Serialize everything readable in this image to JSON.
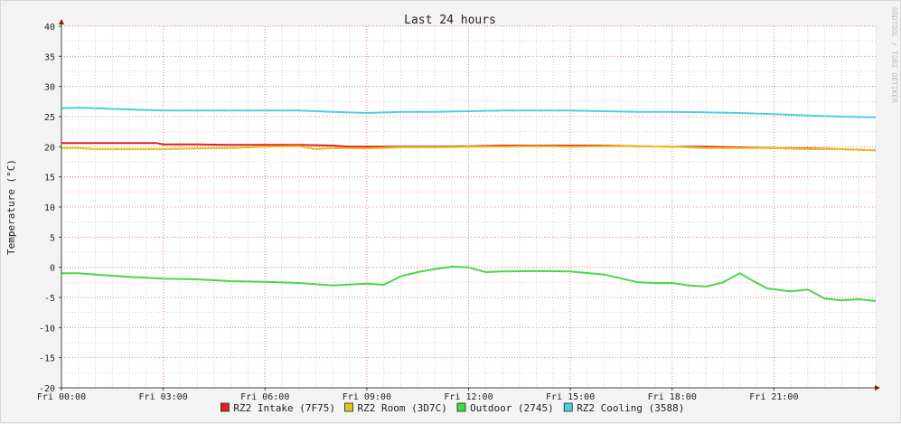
{
  "chart_data": {
    "type": "line",
    "title": "Last 24 hours",
    "ylabel": "Temperature (°C)",
    "watermark": "RRDTOOL / TOBI OETIKER",
    "ylim": [
      -20,
      40
    ],
    "yticks": [
      -20,
      -15,
      -10,
      -5,
      0,
      5,
      10,
      15,
      20,
      25,
      30,
      35,
      40
    ],
    "xlim": [
      0,
      24
    ],
    "xtick_labels": [
      "Fri 00:00",
      "Fri 03:00",
      "Fri 06:00",
      "Fri 09:00",
      "Fri 12:00",
      "Fri 15:00",
      "Fri 18:00",
      "Fri 21:00"
    ],
    "xticks": [
      0,
      3,
      6,
      9,
      12,
      15,
      18,
      21
    ],
    "grid": true,
    "legend_position": "bottom",
    "series": [
      {
        "name": "RZ2 Intake (7F75)",
        "color": "#e81c1c",
        "x": [
          0,
          1,
          2,
          2.8,
          3,
          4,
          5,
          6,
          7,
          8,
          8.5,
          9,
          10,
          11,
          12,
          13,
          14,
          15,
          16,
          17,
          18,
          19,
          20,
          21,
          22,
          23,
          24
        ],
        "y": [
          20.6,
          20.6,
          20.6,
          20.6,
          20.4,
          20.4,
          20.3,
          20.3,
          20.3,
          20.2,
          20.0,
          20.0,
          20.0,
          20.0,
          20.1,
          20.2,
          20.2,
          20.2,
          20.2,
          20.1,
          20.0,
          20.0,
          19.9,
          19.8,
          19.7,
          19.6,
          19.4
        ]
      },
      {
        "name": "RZ2 Room (3D7C)",
        "color": "#e6c21e",
        "x": [
          0,
          0.5,
          1,
          2,
          3,
          4,
          5,
          6,
          7,
          7.5,
          8,
          9,
          10,
          11,
          12,
          13,
          14,
          15,
          16,
          17,
          18,
          19,
          20,
          21,
          22,
          23,
          24
        ],
        "y": [
          19.8,
          19.8,
          19.6,
          19.6,
          19.6,
          19.7,
          19.8,
          20.0,
          20.1,
          19.6,
          19.8,
          19.7,
          19.9,
          19.9,
          20.0,
          20.0,
          20.1,
          20.0,
          20.1,
          20.1,
          20.0,
          19.8,
          19.8,
          19.8,
          19.6,
          19.6,
          19.4
        ]
      },
      {
        "name": "Outdoor (2745)",
        "color": "#48d848",
        "x": [
          0,
          0.5,
          1,
          2,
          3,
          4,
          5,
          6,
          7,
          8,
          9,
          9.5,
          10,
          10.5,
          11,
          11.5,
          12,
          12.5,
          13,
          14,
          15,
          16,
          17,
          17.5,
          18,
          18.5,
          19,
          19.5,
          20,
          20.3,
          20.8,
          21.2,
          21.5,
          22,
          22.5,
          23,
          23.5,
          24
        ],
        "y": [
          -1.0,
          -1.0,
          -1.2,
          -1.6,
          -1.9,
          -2.0,
          -2.3,
          -2.4,
          -2.6,
          -3.0,
          -2.7,
          -2.9,
          -1.5,
          -0.8,
          -0.3,
          0.1,
          0.0,
          -0.8,
          -0.7,
          -0.6,
          -0.7,
          -1.2,
          -2.5,
          -2.6,
          -2.6,
          -3.0,
          -3.2,
          -2.5,
          -1.0,
          -2.0,
          -3.5,
          -3.8,
          -4.0,
          -3.7,
          -5.2,
          -5.5,
          -5.3,
          -5.6
        ]
      },
      {
        "name": "RZ2 Cooling (3588)",
        "color": "#4ad0e0",
        "x": [
          0,
          0.5,
          1,
          2,
          3,
          4,
          5,
          6,
          7,
          8,
          9,
          10,
          11,
          12,
          13,
          14,
          15,
          16,
          17,
          18,
          19,
          20,
          21,
          22,
          23,
          24
        ],
        "y": [
          26.4,
          26.5,
          26.4,
          26.2,
          26.0,
          26.0,
          26.0,
          26.0,
          26.0,
          25.8,
          25.6,
          25.8,
          25.8,
          25.9,
          26.0,
          26.0,
          26.0,
          25.9,
          25.8,
          25.8,
          25.7,
          25.6,
          25.4,
          25.2,
          25.0,
          24.9
        ]
      }
    ]
  }
}
